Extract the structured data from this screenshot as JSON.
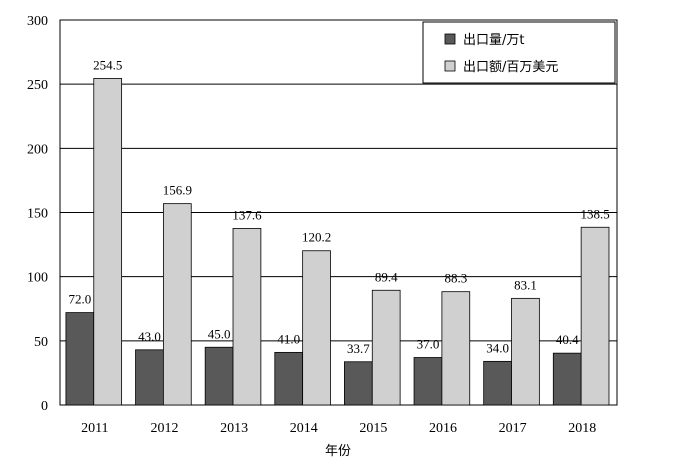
{
  "chart_data": {
    "type": "bar",
    "categories": [
      "2011",
      "2012",
      "2013",
      "2014",
      "2015",
      "2016",
      "2017",
      "2018"
    ],
    "series": [
      {
        "name": "出口量/万t",
        "color": "#595959",
        "values": [
          72.0,
          43.0,
          45.0,
          41.0,
          33.7,
          37.0,
          34.0,
          40.4
        ],
        "labels": [
          "72.0",
          "43.0",
          "45.0",
          "41.0",
          "33.7",
          "37.0",
          "34.0",
          "40.4"
        ]
      },
      {
        "name": "出口额/百万美元",
        "color": "#d0d0d0",
        "values": [
          254.5,
          156.9,
          137.6,
          120.2,
          89.4,
          88.3,
          83.1,
          138.5
        ],
        "labels": [
          "254.5",
          "156.9",
          "137.6",
          "120.2",
          "89.4",
          "88.3",
          "83.1",
          "138.5"
        ]
      }
    ],
    "title": "",
    "xlabel": "年份",
    "ylabel": "",
    "ylim": [
      0,
      300
    ],
    "yticks": [
      "0",
      "50",
      "100",
      "150",
      "200",
      "250",
      "300"
    ],
    "grid": true,
    "legend_position": "top-right"
  }
}
